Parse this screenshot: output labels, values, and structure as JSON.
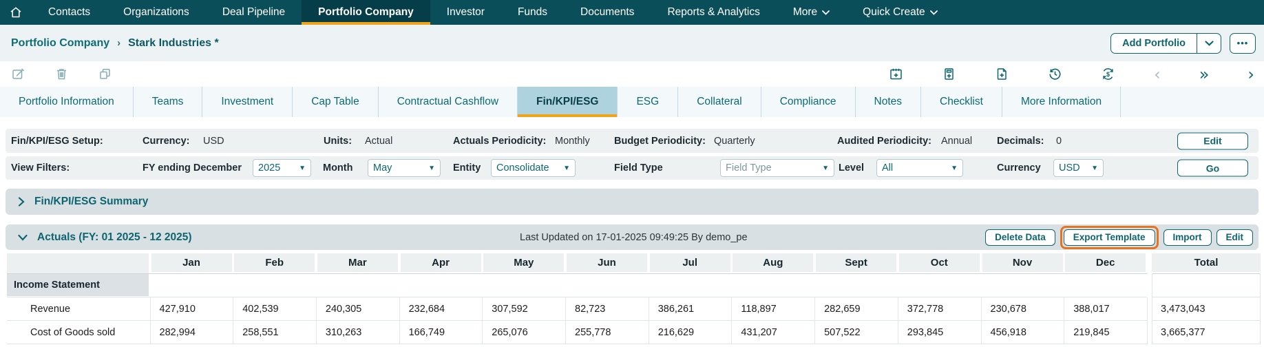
{
  "nav": {
    "home_icon": "home-icon",
    "items": [
      "Contacts",
      "Organizations",
      "Deal Pipeline",
      "Portfolio Company",
      "Investor",
      "Funds",
      "Documents",
      "Reports & Analytics",
      "More",
      "Quick Create"
    ],
    "active_item": "Portfolio Company",
    "dropdown_items": [
      "More",
      "Quick Create"
    ]
  },
  "breadcrumb": {
    "parent": "Portfolio Company",
    "separator": "›",
    "current": "Stark Industries *"
  },
  "page_actions": {
    "add_portfolio_label": "Add Portfolio",
    "more_options_label": "•••"
  },
  "toolbar": {
    "left_icons": [
      "edit-icon",
      "delete-icon",
      "duplicate-icon"
    ],
    "right_icons": [
      "calendar-add-icon",
      "report-add-icon",
      "file-add-icon",
      "history-icon",
      "currency-refresh-icon",
      "chevron-left-icon",
      "double-chevron-right-icon",
      "chevron-right-icon"
    ]
  },
  "tabs": {
    "items": [
      "Portfolio Information",
      "Teams",
      "Investment",
      "Cap Table",
      "Contractual Cashflow",
      "Fin/KPI/ESG",
      "ESG",
      "Collateral",
      "Compliance",
      "Notes",
      "Checklist",
      "More Information"
    ],
    "active": "Fin/KPI/ESG"
  },
  "setup_row": {
    "section_label": "Fin/KPI/ESG Setup:",
    "fields": [
      {
        "label": "Currency:",
        "value": "USD"
      },
      {
        "label": "Units:",
        "value": "Actual"
      },
      {
        "label": "Actuals Periodicity:",
        "value": "Monthly"
      },
      {
        "label": "Budget Periodicity:",
        "value": "Quarterly"
      },
      {
        "label": "Audited Periodicity:",
        "value": "Annual"
      },
      {
        "label": "Decimals:",
        "value": "0"
      }
    ],
    "edit_button": "Edit"
  },
  "filters_row": {
    "section_label": "View Filters:",
    "filters": [
      {
        "label": "FY ending December",
        "value": "2025",
        "placeholder": false
      },
      {
        "label": "Month",
        "value": "May",
        "placeholder": false
      },
      {
        "label": "Entity",
        "value": "Consolidate",
        "placeholder": false
      },
      {
        "label": "Field Type",
        "value": "Field Type",
        "placeholder": true
      },
      {
        "label": "Level",
        "value": "All",
        "placeholder": false
      },
      {
        "label": "Currency",
        "value": "USD",
        "placeholder": false
      }
    ],
    "go_button": "Go"
  },
  "summary_section": {
    "title": "Fin/KPI/ESG Summary",
    "collapsed": true,
    "chevron": "chevron-right-icon"
  },
  "actuals_section": {
    "title": "Actuals (FY: 01 2025 - 12 2025)",
    "chevron": "chevron-down-icon",
    "last_updated": "Last Updated on 17-01-2025 09:49:25 By demo_pe",
    "buttons": [
      "Delete Data",
      "Export Template",
      "Import",
      "Edit"
    ],
    "highlighted_button": "Export Template"
  },
  "table": {
    "columns": [
      "Jan",
      "Feb",
      "Mar",
      "Apr",
      "May",
      "Jun",
      "Jul",
      "Aug",
      "Sept",
      "Oct",
      "Nov",
      "Dec",
      "Total"
    ],
    "group_row": "Income Statement",
    "rows": [
      {
        "label": "Revenue",
        "values": [
          "427,910",
          "402,539",
          "240,305",
          "232,684",
          "307,592",
          "82,723",
          "386,261",
          "118,897",
          "282,659",
          "372,778",
          "230,678",
          "388,017"
        ],
        "total": "3,473,043"
      },
      {
        "label": "Cost of Goods sold",
        "values": [
          "282,994",
          "258,551",
          "310,263",
          "166,749",
          "265,076",
          "255,778",
          "216,629",
          "431,207",
          "507,522",
          "293,845",
          "456,918",
          "219,845"
        ],
        "total": "3,665,377"
      }
    ]
  },
  "colors": {
    "nav_bg": "#0a4e59",
    "accent_amber": "#f0a519",
    "teal": "#0d6570",
    "highlight_orange": "#e5731f"
  }
}
